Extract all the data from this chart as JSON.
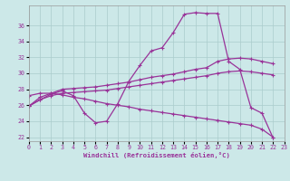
{
  "xlabel": "Windchill (Refroidissement éolien,°C)",
  "background_color": "#cce8e8",
  "grid_color": "#aacccc",
  "line_color": "#993399",
  "xlim": [
    0,
    23
  ],
  "ylim": [
    21.5,
    38.5
  ],
  "yticks": [
    22,
    24,
    26,
    28,
    30,
    32,
    34,
    36
  ],
  "xticks": [
    0,
    1,
    2,
    3,
    4,
    5,
    6,
    7,
    8,
    9,
    10,
    11,
    12,
    13,
    14,
    15,
    16,
    17,
    18,
    19,
    20,
    21,
    22,
    23
  ],
  "series1_x": [
    0,
    1,
    2,
    3,
    4,
    5,
    6,
    7,
    8,
    9,
    10,
    11,
    12,
    13,
    14,
    15,
    16,
    17,
    18,
    19,
    20,
    21,
    22
  ],
  "series1_y": [
    25.9,
    26.7,
    27.4,
    27.8,
    27.2,
    25.0,
    23.8,
    24.0,
    26.2,
    29.0,
    31.0,
    32.8,
    33.2,
    35.1,
    37.4,
    37.6,
    37.5,
    37.5,
    31.5,
    30.5,
    25.7,
    25.0,
    21.9
  ],
  "series2_x": [
    0,
    1,
    2,
    3,
    4,
    5,
    6,
    7,
    8,
    9,
    10,
    11,
    12,
    13,
    14,
    15,
    16,
    17,
    18,
    19,
    20,
    21,
    22
  ],
  "series2_y": [
    25.9,
    27.0,
    27.5,
    28.0,
    28.1,
    28.2,
    28.3,
    28.5,
    28.7,
    28.9,
    29.2,
    29.5,
    29.7,
    29.9,
    30.2,
    30.5,
    30.7,
    31.5,
    31.8,
    31.9,
    31.8,
    31.5,
    31.2
  ],
  "series3_x": [
    0,
    1,
    2,
    3,
    4,
    5,
    6,
    7,
    8,
    9,
    10,
    11,
    12,
    13,
    14,
    15,
    16,
    17,
    18,
    19,
    20,
    21,
    22
  ],
  "series3_y": [
    25.9,
    26.7,
    27.2,
    27.5,
    27.6,
    27.7,
    27.8,
    27.9,
    28.1,
    28.3,
    28.5,
    28.7,
    28.9,
    29.1,
    29.3,
    29.5,
    29.7,
    30.0,
    30.2,
    30.3,
    30.2,
    30.0,
    29.8
  ],
  "series4_x": [
    0,
    1,
    2,
    3,
    4,
    5,
    6,
    7,
    8,
    9,
    10,
    11,
    12,
    13,
    14,
    15,
    16,
    17,
    18,
    19,
    20,
    21,
    22
  ],
  "series4_y": [
    27.2,
    27.5,
    27.5,
    27.3,
    27.0,
    26.8,
    26.5,
    26.2,
    26.0,
    25.8,
    25.5,
    25.3,
    25.1,
    24.9,
    24.7,
    24.5,
    24.3,
    24.1,
    23.9,
    23.7,
    23.5,
    23.0,
    22.0
  ]
}
